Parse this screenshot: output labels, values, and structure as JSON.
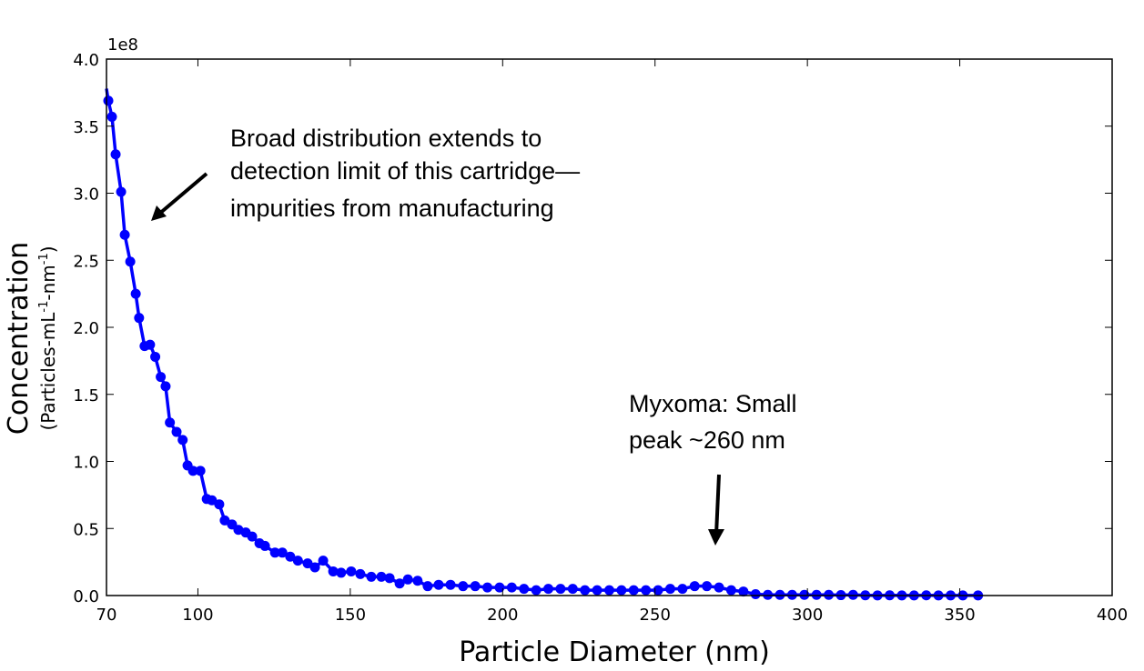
{
  "chart_data": {
    "type": "line",
    "title": "",
    "xlabel": "Particle Diameter (nm)",
    "ylabel": "Concentration",
    "ylabel_units": "(Particles-mL",
    "ylabel_units_sup1": "-1",
    "ylabel_units_mid": "-nm",
    "ylabel_units_sup2": "-1",
    "ylabel_units_end": ")",
    "y_offset_text": "1e8",
    "xlim": [
      70,
      400
    ],
    "ylim": [
      0,
      4.0
    ],
    "y_scale_factor": 100000000,
    "grid": false,
    "marker": "circle",
    "color": "#0000ff",
    "xticks": [
      "70",
      "100",
      "150",
      "200",
      "250",
      "300",
      "350",
      "400"
    ],
    "yticks": [
      "0.0",
      "0.5",
      "1.0",
      "1.5",
      "2.0",
      "2.5",
      "3.0",
      "3.5",
      "4.0"
    ],
    "series": [
      {
        "x": [
          70.6,
          71.8,
          73,
          74.8,
          76,
          77.8,
          79.6,
          80.7,
          82.5,
          84.3,
          86,
          87.8,
          89.4,
          90.8,
          93,
          95,
          96.6,
          98.4,
          100.8,
          102.9,
          104.6,
          107,
          108.8,
          111.2,
          113.3,
          115.7,
          117.8,
          120.2,
          122,
          125.3,
          127.7,
          130.3,
          132.8,
          136,
          138.4,
          141.1,
          144.4,
          147,
          150.3,
          153.3,
          156.9,
          160.2,
          162.9,
          166.2,
          168.9,
          172.1,
          175.4,
          179,
          182.9,
          187,
          191,
          195,
          199,
          203,
          207,
          211,
          215,
          219,
          223,
          227,
          231,
          235,
          239,
          243,
          247,
          251,
          255,
          259,
          263,
          267,
          271,
          275,
          279,
          283,
          287,
          291,
          295,
          299,
          303,
          307,
          311,
          315,
          319,
          323,
          327,
          331,
          335,
          339,
          343,
          347,
          351,
          356
        ],
        "y": [
          3.69,
          3.57,
          3.29,
          3.01,
          2.69,
          2.49,
          2.25,
          2.07,
          1.86,
          1.87,
          1.78,
          1.63,
          1.56,
          1.29,
          1.22,
          1.16,
          0.97,
          0.93,
          0.93,
          0.72,
          0.71,
          0.68,
          0.56,
          0.53,
          0.49,
          0.47,
          0.44,
          0.39,
          0.37,
          0.32,
          0.32,
          0.29,
          0.26,
          0.24,
          0.21,
          0.26,
          0.18,
          0.17,
          0.18,
          0.16,
          0.14,
          0.14,
          0.13,
          0.09,
          0.12,
          0.11,
          0.07,
          0.08,
          0.08,
          0.07,
          0.07,
          0.06,
          0.06,
          0.06,
          0.05,
          0.04,
          0.05,
          0.05,
          0.05,
          0.04,
          0.04,
          0.04,
          0.04,
          0.04,
          0.04,
          0.04,
          0.05,
          0.05,
          0.07,
          0.07,
          0.06,
          0.04,
          0.03,
          0.01,
          0.005,
          0.005,
          0.005,
          0.005,
          0.005,
          0.005,
          0.003,
          0.005,
          0.002,
          0.001,
          0.002,
          0.001,
          0.001,
          0.002,
          0.001,
          0.001,
          0.001,
          0.001
        ]
      }
    ],
    "annotations": [
      {
        "lines": [
          "Broad distribution extends to",
          "detection limit of this cartridge—",
          "impurities from manufacturing"
        ]
      },
      {
        "lines": [
          "Myxoma: Small",
          "peak ~260 nm"
        ]
      }
    ]
  }
}
